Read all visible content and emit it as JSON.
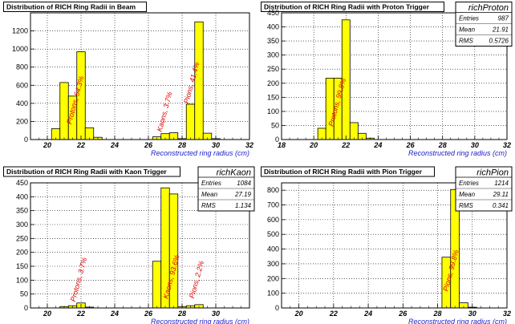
{
  "colors": {
    "fill": "#ffff00",
    "stroke": "#000000",
    "annotation": "#e00000",
    "axis_label": "#2020c8",
    "grid": "#000000"
  },
  "chart_data": [
    {
      "type": "bar",
      "title": "Distribution of RICH Ring Radii in Beam",
      "xlabel": "Reconstructed ring radius (cm)",
      "ylabel": "",
      "xlim": [
        19,
        32
      ],
      "ylim": [
        0,
        1400
      ],
      "x_ticks": [
        20,
        22,
        24,
        26,
        28,
        30,
        32
      ],
      "y_ticks": [
        0,
        200,
        400,
        600,
        800,
        1000,
        1200
      ],
      "grid": true,
      "bin_width": 0.5,
      "bins": [
        {
          "x": 20.5,
          "y": 120
        },
        {
          "x": 21.0,
          "y": 630
        },
        {
          "x": 21.5,
          "y": 480
        },
        {
          "x": 22.0,
          "y": 970
        },
        {
          "x": 22.5,
          "y": 130
        },
        {
          "x": 23.0,
          "y": 25
        },
        {
          "x": 26.5,
          "y": 30
        },
        {
          "x": 27.0,
          "y": 65
        },
        {
          "x": 27.5,
          "y": 75
        },
        {
          "x": 28.0,
          "y": 10
        },
        {
          "x": 28.5,
          "y": 390
        },
        {
          "x": 29.0,
          "y": 1300
        },
        {
          "x": 29.5,
          "y": 70
        },
        {
          "x": 30.0,
          "y": 10
        }
      ],
      "annotations": [
        {
          "text": "Protons, 54.3%",
          "x": 21.8,
          "y": 430
        },
        {
          "text": "Kaons, 3.7%",
          "x": 27.1,
          "y": 300
        },
        {
          "text": "Pions, 41.4%",
          "x": 28.7,
          "y": 620
        }
      ],
      "stats": null
    },
    {
      "type": "bar",
      "title": "Distribution of RICH Ring Radii with Proton Trigger",
      "xlabel": "Reconstructed ring radius (cm)",
      "ylabel": "",
      "xlim": [
        18,
        32
      ],
      "ylim": [
        0,
        450
      ],
      "x_ticks": [
        18,
        20,
        22,
        24,
        26,
        28,
        30,
        32
      ],
      "y_ticks": [
        0,
        50,
        100,
        150,
        200,
        250,
        300,
        350,
        400,
        450
      ],
      "grid": true,
      "bin_width": 0.5,
      "bins": [
        {
          "x": 20.5,
          "y": 40
        },
        {
          "x": 21.0,
          "y": 218
        },
        {
          "x": 21.5,
          "y": 218
        },
        {
          "x": 22.0,
          "y": 425
        },
        {
          "x": 22.5,
          "y": 60
        },
        {
          "x": 23.0,
          "y": 22
        },
        {
          "x": 23.5,
          "y": 5
        }
      ],
      "annotations": [
        {
          "text": "Protons, 99.8%",
          "x": 21.6,
          "y": 130
        }
      ],
      "stats": {
        "name": "richProton",
        "Entries": "987",
        "Mean": "21.91",
        "RMS": "0.5726"
      }
    },
    {
      "type": "bar",
      "title": "Distribution of RICH Ring Radii with Kaon Trigger",
      "xlabel": "Reconstructed ring radius (cm)",
      "ylabel": "",
      "xlim": [
        19,
        32
      ],
      "ylim": [
        0,
        450
      ],
      "x_ticks": [
        20,
        22,
        24,
        26,
        28,
        30
      ],
      "y_ticks": [
        0,
        50,
        100,
        150,
        200,
        250,
        300,
        350,
        400,
        450
      ],
      "grid": true,
      "bin_width": 0.5,
      "bins": [
        {
          "x": 21.0,
          "y": 5
        },
        {
          "x": 21.5,
          "y": 8
        },
        {
          "x": 22.0,
          "y": 18
        },
        {
          "x": 22.5,
          "y": 3
        },
        {
          "x": 26.5,
          "y": 168
        },
        {
          "x": 27.0,
          "y": 432
        },
        {
          "x": 27.5,
          "y": 410
        },
        {
          "x": 28.0,
          "y": 5
        },
        {
          "x": 28.5,
          "y": 8
        },
        {
          "x": 29.0,
          "y": 12
        }
      ],
      "annotations": [
        {
          "text": "Protons, 3.7%",
          "x": 22.0,
          "y": 100
        },
        {
          "text": "Kaons, 93.6%",
          "x": 27.5,
          "y": 110
        },
        {
          "text": "Pions, 2.2%",
          "x": 29.0,
          "y": 100
        }
      ],
      "stats": {
        "name": "richKaon",
        "Entries": "1084",
        "Mean": "27.19",
        "RMS": "1.134"
      }
    },
    {
      "type": "bar",
      "title": "Distribution of RICH Ring Radii with Pion Trigger",
      "xlabel": "Reconstructed ring radius (cm)",
      "ylabel": "",
      "xlim": [
        19,
        32
      ],
      "ylim": [
        0,
        850
      ],
      "x_ticks": [
        20,
        22,
        24,
        26,
        28,
        30,
        32
      ],
      "y_ticks": [
        0,
        100,
        200,
        300,
        400,
        500,
        600,
        700,
        800
      ],
      "grid": true,
      "bin_width": 0.5,
      "bins": [
        {
          "x": 28.5,
          "y": 345
        },
        {
          "x": 29.0,
          "y": 805
        },
        {
          "x": 29.5,
          "y": 35
        },
        {
          "x": 30.0,
          "y": 5
        }
      ],
      "annotations": [
        {
          "text": "Pions, 99.8%",
          "x": 28.9,
          "y": 250
        }
      ],
      "stats": {
        "name": "richPion",
        "Entries": "1214",
        "Mean": "29.11",
        "RMS": "0.341"
      }
    }
  ]
}
